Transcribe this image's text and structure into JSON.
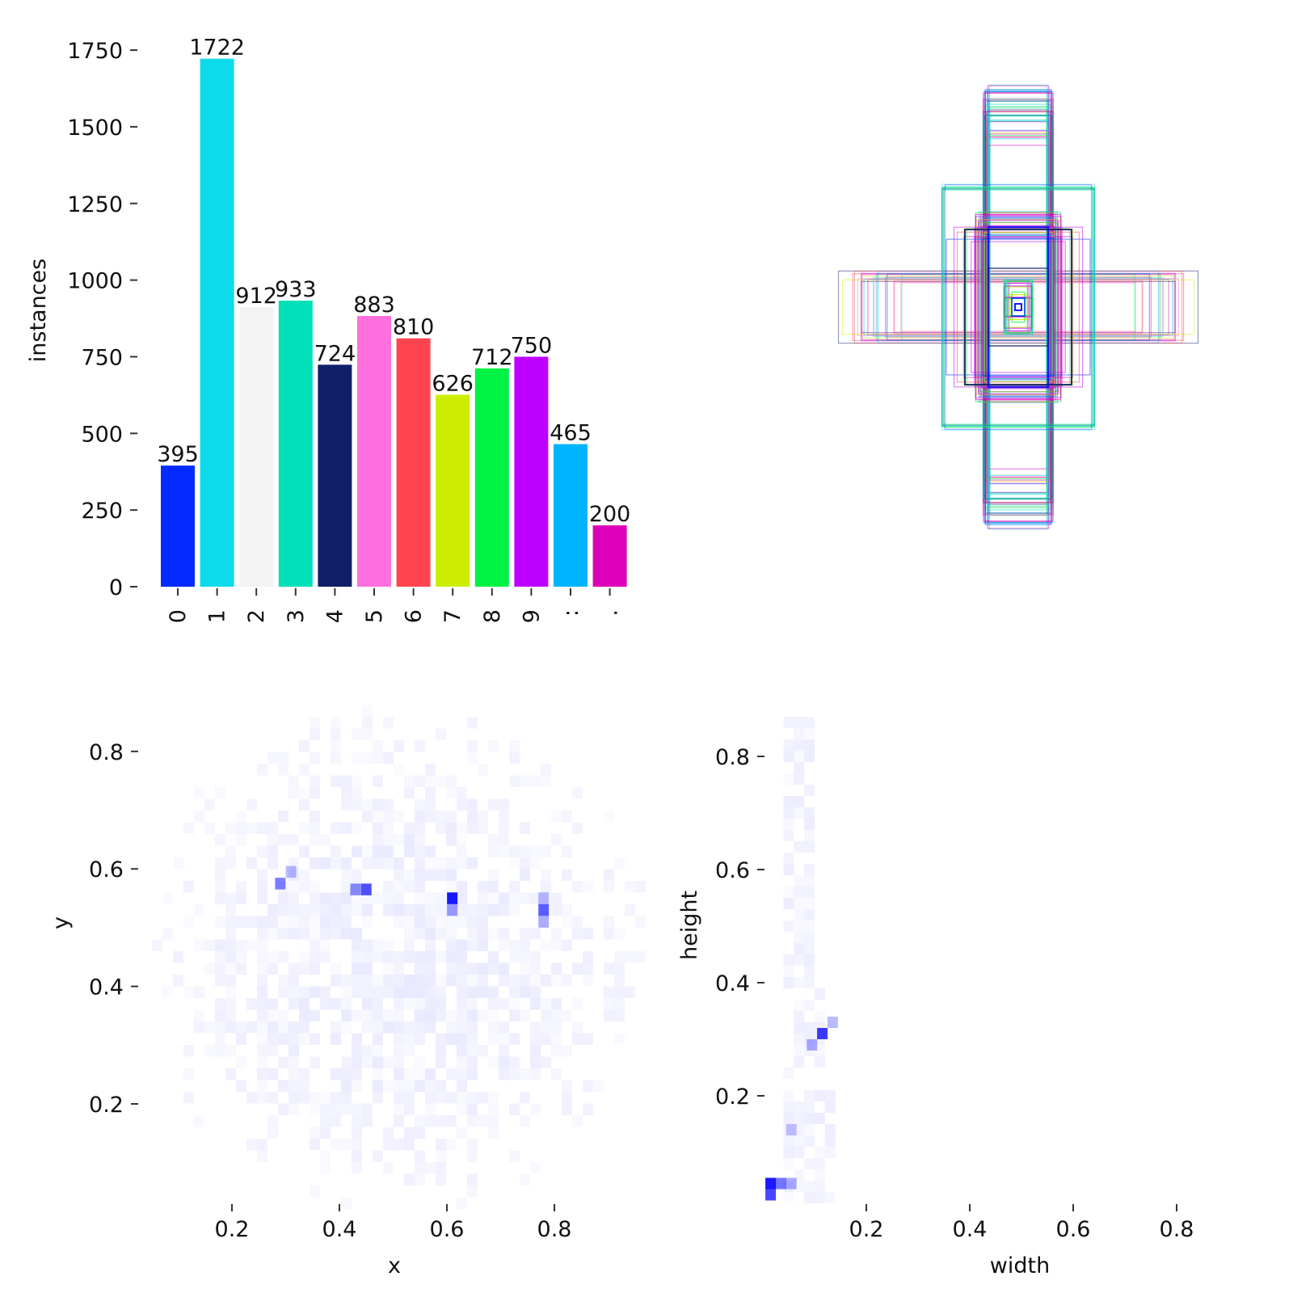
{
  "chart_data": [
    {
      "type": "bar",
      "categories": [
        "0",
        "1",
        "2",
        "3",
        "4",
        "5",
        "6",
        "7",
        "8",
        "9",
        ":",
        "."
      ],
      "values": [
        395,
        1722,
        912,
        933,
        724,
        883,
        810,
        626,
        712,
        750,
        465,
        200
      ],
      "colors": [
        "#042aff",
        "#0bdbeb",
        "#f3f3f3",
        "#00dfb7",
        "#111f68",
        "#ff6fdd",
        "#ff444f",
        "#cced00",
        "#00f344",
        "#bd00ff",
        "#00b4ff",
        "#dd00ba"
      ],
      "ylabel": "instances",
      "xlabel": "",
      "yticks": [
        0,
        250,
        500,
        750,
        1000,
        1250,
        1500,
        1750
      ],
      "ylim": [
        0,
        1800
      ]
    },
    {
      "type": "boxes",
      "description_hint": "overlaid label boxes centered at (0.5, 0.5)"
    },
    {
      "type": "heatmap",
      "xlabel": "x",
      "ylabel": "y",
      "xticks": [
        0.2,
        0.4,
        0.6,
        0.8
      ],
      "yticks": [
        0.2,
        0.4,
        0.6,
        0.8
      ],
      "color": "#0000ff",
      "hotspots": [
        {
          "x": 0.29,
          "y": 0.575,
          "v": 0.55
        },
        {
          "x": 0.31,
          "y": 0.595,
          "v": 0.3
        },
        {
          "x": 0.45,
          "y": 0.565,
          "v": 0.75
        },
        {
          "x": 0.43,
          "y": 0.565,
          "v": 0.5
        },
        {
          "x": 0.61,
          "y": 0.55,
          "v": 1.0
        },
        {
          "x": 0.61,
          "y": 0.53,
          "v": 0.4
        },
        {
          "x": 0.78,
          "y": 0.53,
          "v": 0.7
        },
        {
          "x": 0.78,
          "y": 0.51,
          "v": 0.35
        },
        {
          "x": 0.78,
          "y": 0.55,
          "v": 0.3
        }
      ]
    },
    {
      "type": "heatmap",
      "xlabel": "width",
      "ylabel": "height",
      "xticks": [
        0.2,
        0.4,
        0.6,
        0.8
      ],
      "yticks": [
        0.2,
        0.4,
        0.6,
        0.8
      ],
      "color": "#0000ff",
      "hotspots": [
        {
          "x": 0.015,
          "y": 0.045,
          "v": 1.0
        },
        {
          "x": 0.015,
          "y": 0.025,
          "v": 0.8
        },
        {
          "x": 0.035,
          "y": 0.045,
          "v": 0.6
        },
        {
          "x": 0.055,
          "y": 0.045,
          "v": 0.35
        },
        {
          "x": 0.115,
          "y": 0.31,
          "v": 0.85
        },
        {
          "x": 0.095,
          "y": 0.29,
          "v": 0.35
        },
        {
          "x": 0.135,
          "y": 0.33,
          "v": 0.3
        },
        {
          "x": 0.055,
          "y": 0.14,
          "v": 0.25
        }
      ]
    }
  ]
}
